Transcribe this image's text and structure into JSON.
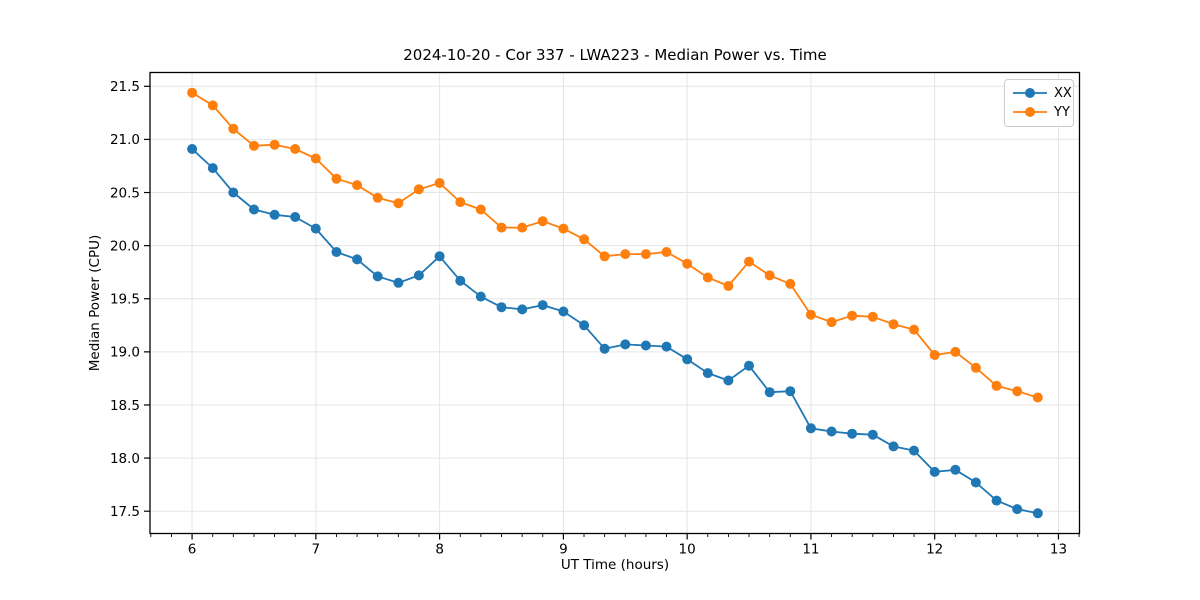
{
  "figure": {
    "background": "#ffffff",
    "spine_color": "#000000",
    "grid_color": "#e5e5e5"
  },
  "chart_data": {
    "type": "line",
    "title": "2024-10-20 - Cor 337 - LWA223 - Median Power vs. Time",
    "xlabel": "UT Time (hours)",
    "ylabel": "Median Power (CPU)",
    "xlim": [
      5.66,
      13.17
    ],
    "ylim": [
      17.29,
      21.63
    ],
    "xticks": [
      6,
      7,
      8,
      9,
      10,
      11,
      12,
      13
    ],
    "xtick_labels": [
      "6",
      "7",
      "8",
      "9",
      "10",
      "11",
      "12",
      "13"
    ],
    "yticks": [
      17.5,
      18.0,
      18.5,
      19.0,
      19.5,
      20.0,
      20.5,
      21.0,
      21.5
    ],
    "ytick_labels": [
      "17.5",
      "18.0",
      "18.5",
      "19.0",
      "19.5",
      "20.0",
      "20.5",
      "21.0",
      "21.5"
    ],
    "x_minor_divisions_per_hour": 6,
    "grid": true,
    "legend_position": "upper right",
    "x": [
      6.0,
      6.167,
      6.333,
      6.5,
      6.667,
      6.833,
      7.0,
      7.167,
      7.333,
      7.5,
      7.667,
      7.833,
      8.0,
      8.167,
      8.333,
      8.5,
      8.667,
      8.833,
      9.0,
      9.167,
      9.333,
      9.5,
      9.667,
      9.833,
      10.0,
      10.167,
      10.333,
      10.5,
      10.667,
      10.833,
      11.0,
      11.167,
      11.333,
      11.5,
      11.667,
      11.833,
      12.0,
      12.167,
      12.333,
      12.5,
      12.667,
      12.833
    ],
    "series": [
      {
        "name": "XX",
        "color": "#1f77b4",
        "values": [
          20.91,
          20.73,
          20.5,
          20.34,
          20.29,
          20.27,
          20.16,
          19.94,
          19.87,
          19.71,
          19.65,
          19.72,
          19.9,
          19.67,
          19.52,
          19.42,
          19.4,
          19.44,
          19.38,
          19.25,
          19.03,
          19.07,
          19.06,
          19.05,
          18.93,
          18.8,
          18.73,
          18.87,
          18.62,
          18.63,
          18.28,
          18.25,
          18.23,
          18.22,
          18.11,
          18.07,
          17.87,
          17.89,
          17.77,
          17.6,
          17.52,
          17.48
        ]
      },
      {
        "name": "YY",
        "color": "#ff7f0e",
        "values": [
          21.44,
          21.32,
          21.1,
          20.94,
          20.95,
          20.91,
          20.82,
          20.63,
          20.57,
          20.45,
          20.4,
          20.53,
          20.59,
          20.41,
          20.34,
          20.17,
          20.17,
          20.23,
          20.16,
          20.06,
          19.9,
          19.92,
          19.92,
          19.94,
          19.83,
          19.7,
          19.62,
          19.85,
          19.72,
          19.64,
          19.35,
          19.28,
          19.34,
          19.33,
          19.26,
          19.21,
          18.97,
          19.0,
          18.85,
          18.68,
          18.63,
          18.57
        ]
      }
    ]
  }
}
